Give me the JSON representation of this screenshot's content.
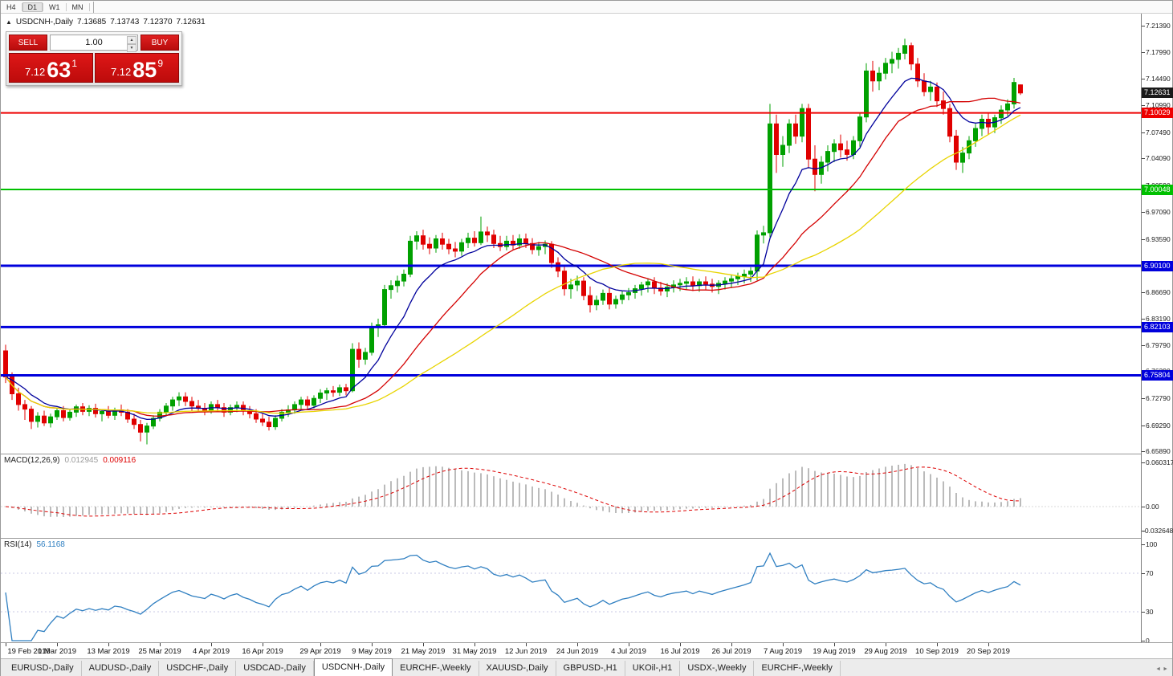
{
  "period_toolbar": {
    "buttons": [
      "H4",
      "D1",
      "W1",
      "MN"
    ],
    "active": "D1"
  },
  "chart_header": {
    "collapse_icon": "▲",
    "symbol": "USDCNH-,Daily",
    "open": "7.13685",
    "high": "7.13743",
    "low": "7.12370",
    "close": "7.12631"
  },
  "trade_panel": {
    "sell_label": "SELL",
    "buy_label": "BUY",
    "volume": "1.00",
    "sell_price": {
      "main": "7.12",
      "pips": "63",
      "sup": "1"
    },
    "buy_price": {
      "main": "7.12",
      "pips": "85",
      "sup": "9"
    }
  },
  "colors": {
    "candle_up": "#00a000",
    "candle_down": "#e00000",
    "macd_hist": "#aaaaaa",
    "macd_signal": "#dd0000",
    "rsi_line": "#2f7fc1"
  },
  "price_axis": {
    "ticks": [
      "7.21390",
      "7.17990",
      "7.14490",
      "7.10990",
      "7.07490",
      "7.04090",
      "7.00590",
      "6.97090",
      "6.93590",
      "6.90090",
      "6.86690",
      "6.83190",
      "6.79790",
      "6.76390",
      "6.72790",
      "6.69290",
      "6.65890"
    ],
    "level_labels": [
      {
        "text": "7.12631",
        "price": 7.12631,
        "color": "#1a1a1a"
      },
      {
        "text": "7.10029",
        "price": 7.10029,
        "color": "#ee0000"
      },
      {
        "text": "7.00048",
        "price": 7.00048,
        "color": "#00c000"
      },
      {
        "text": "6.90100",
        "price": 6.901,
        "color": "#0000dc"
      },
      {
        "text": "6.82103",
        "price": 6.82103,
        "color": "#0000dc"
      },
      {
        "text": "6.75804",
        "price": 6.75804,
        "color": "#0000dc"
      }
    ]
  },
  "macd_panel": {
    "label": "MACD(12,26,9)",
    "value": "0.012945",
    "signal_value": "0.009116",
    "axis": [
      {
        "text": "0.060317",
        "v": 0.060317
      },
      {
        "text": "0.00",
        "v": 0
      },
      {
        "text": "-0.032648",
        "v": -0.032648
      }
    ]
  },
  "rsi_panel": {
    "label": "RSI(14)",
    "value": "56.1168",
    "axis": [
      {
        "text": "100",
        "v": 100
      },
      {
        "text": "70",
        "v": 70
      },
      {
        "text": "30",
        "v": 30
      },
      {
        "text": "0",
        "v": 0
      }
    ]
  },
  "bottom_tabs": {
    "active_index": 4,
    "tabs": [
      "EURUSD-,Daily",
      "AUDUSD-,Daily",
      "USDCHF-,Daily",
      "USDCAD-,Daily",
      "USDCNH-,Daily",
      "EURCHF-,Weekly",
      "XAUUSD-,Daily",
      "GBPUSD-,H1",
      "UKOil-,H1",
      "USDX-,Weekly",
      "EURCHF-,Weekly"
    ],
    "scroll_left_icon": "◄",
    "scroll_right_icon": "►"
  },
  "chart_data": {
    "type": "candlestick",
    "symbol": "USDCNH",
    "timeframe": "Daily",
    "ylim": [
      6.656,
      7.2297
    ],
    "current_price": 7.12631,
    "h_lines": [
      {
        "price": 7.10029,
        "color": "#ee0000",
        "width": 2
      },
      {
        "price": 7.00048,
        "color": "#00c000",
        "width": 2
      },
      {
        "price": 6.901,
        "color": "#0000dc",
        "width": 3
      },
      {
        "price": 6.82103,
        "color": "#0000dc",
        "width": 3
      },
      {
        "price": 6.75804,
        "color": "#0000dc",
        "width": 3
      }
    ],
    "indicators": {
      "ma": [
        {
          "type": "ema",
          "period": 10,
          "color": "#00009c"
        },
        {
          "type": "sma",
          "period": 21,
          "color": "#d40000"
        },
        {
          "type": "sma",
          "period": 40,
          "color": "#e8d400"
        }
      ],
      "macd": {
        "fast": 12,
        "slow": 26,
        "signal": 9
      },
      "rsi": {
        "period": 14,
        "levels": [
          70,
          30
        ]
      }
    },
    "macd_ylim": [
      -0.032648,
      0.060317
    ],
    "rsi_ylim": [
      0,
      100
    ],
    "date_labels": [
      {
        "i": 0,
        "t": "19 Feb 2019"
      },
      {
        "i": 8,
        "t": "1 Mar 2019"
      },
      {
        "i": 16,
        "t": "13 Mar 2019"
      },
      {
        "i": 24,
        "t": "25 Mar 2019"
      },
      {
        "i": 32,
        "t": "4 Apr 2019"
      },
      {
        "i": 40,
        "t": "16 Apr 2019"
      },
      {
        "i": 49,
        "t": "29 Apr 2019"
      },
      {
        "i": 57,
        "t": "9 May 2019"
      },
      {
        "i": 65,
        "t": "21 May 2019"
      },
      {
        "i": 73,
        "t": "31 May 2019"
      },
      {
        "i": 81,
        "t": "12 Jun 2019"
      },
      {
        "i": 89,
        "t": "24 Jun 2019"
      },
      {
        "i": 97,
        "t": "4 Jul 2019"
      },
      {
        "i": 105,
        "t": "16 Jul 2019"
      },
      {
        "i": 113,
        "t": "26 Jul 2019"
      },
      {
        "i": 121,
        "t": "7 Aug 2019"
      },
      {
        "i": 129,
        "t": "19 Aug 2019"
      },
      {
        "i": 137,
        "t": "29 Aug 2019"
      },
      {
        "i": 145,
        "t": "10 Sep 2019"
      },
      {
        "i": 153,
        "t": "20 Sep 2019"
      }
    ],
    "candles": [
      [
        6.79,
        6.798,
        6.748,
        6.756
      ],
      [
        6.756,
        6.762,
        6.726,
        6.734
      ],
      [
        6.734,
        6.742,
        6.712,
        6.72
      ],
      [
        6.72,
        6.726,
        6.7,
        6.714
      ],
      [
        6.714,
        6.718,
        6.688,
        6.698
      ],
      [
        6.698,
        6.71,
        6.69,
        6.705
      ],
      [
        6.705,
        6.712,
        6.692,
        6.696
      ],
      [
        6.696,
        6.708,
        6.69,
        6.704
      ],
      [
        6.704,
        6.716,
        6.7,
        6.712
      ],
      [
        6.712,
        6.718,
        6.698,
        6.703
      ],
      [
        6.703,
        6.714,
        6.699,
        6.71
      ],
      [
        6.71,
        6.72,
        6.704,
        6.717
      ],
      [
        6.717,
        6.722,
        6.706,
        6.711
      ],
      [
        6.711,
        6.719,
        6.705,
        6.715
      ],
      [
        6.715,
        6.721,
        6.703,
        6.708
      ],
      [
        6.708,
        6.714,
        6.698,
        6.711
      ],
      [
        6.711,
        6.718,
        6.702,
        6.706
      ],
      [
        6.706,
        6.716,
        6.7,
        6.713
      ],
      [
        6.713,
        6.72,
        6.705,
        6.71
      ],
      [
        6.71,
        6.714,
        6.696,
        6.701
      ],
      [
        6.701,
        6.708,
        6.688,
        6.694
      ],
      [
        6.694,
        6.7,
        6.672,
        6.684
      ],
      [
        6.684,
        6.696,
        6.668,
        6.692
      ],
      [
        6.692,
        6.706,
        6.688,
        6.702
      ],
      [
        6.702,
        6.714,
        6.698,
        6.71
      ],
      [
        6.71,
        6.722,
        6.706,
        6.718
      ],
      [
        6.718,
        6.73,
        6.712,
        6.726
      ],
      [
        6.726,
        6.736,
        6.718,
        6.73
      ],
      [
        6.73,
        6.736,
        6.718,
        6.724
      ],
      [
        6.724,
        6.73,
        6.712,
        6.718
      ],
      [
        6.718,
        6.726,
        6.71,
        6.715
      ],
      [
        6.715,
        6.722,
        6.706,
        6.712
      ],
      [
        6.712,
        6.724,
        6.708,
        6.72
      ],
      [
        6.72,
        6.726,
        6.71,
        6.716
      ],
      [
        6.716,
        6.722,
        6.704,
        6.71
      ],
      [
        6.71,
        6.72,
        6.706,
        6.716
      ],
      [
        6.716,
        6.724,
        6.71,
        6.719
      ],
      [
        6.719,
        6.724,
        6.706,
        6.712
      ],
      [
        6.712,
        6.718,
        6.702,
        6.708
      ],
      [
        6.708,
        6.714,
        6.696,
        6.701
      ],
      [
        6.701,
        6.708,
        6.692,
        6.697
      ],
      [
        6.697,
        6.704,
        6.686,
        6.691
      ],
      [
        6.691,
        6.706,
        6.687,
        6.702
      ],
      [
        6.702,
        6.714,
        6.698,
        6.71
      ],
      [
        6.71,
        6.719,
        6.704,
        6.713
      ],
      [
        6.713,
        6.724,
        6.708,
        6.72
      ],
      [
        6.72,
        6.73,
        6.714,
        6.726
      ],
      [
        6.726,
        6.731,
        6.714,
        6.719
      ],
      [
        6.719,
        6.732,
        6.715,
        6.728
      ],
      [
        6.728,
        6.74,
        6.722,
        6.735
      ],
      [
        6.735,
        6.742,
        6.726,
        6.738
      ],
      [
        6.738,
        6.744,
        6.73,
        6.736
      ],
      [
        6.736,
        6.746,
        6.731,
        6.742
      ],
      [
        6.742,
        6.747,
        6.732,
        6.738
      ],
      [
        6.738,
        6.8,
        6.736,
        6.792
      ],
      [
        6.792,
        6.801,
        6.768,
        6.779
      ],
      [
        6.779,
        6.794,
        6.772,
        6.788
      ],
      [
        6.788,
        6.827,
        6.784,
        6.821
      ],
      [
        6.821,
        6.832,
        6.808,
        6.824
      ],
      [
        6.824,
        6.876,
        6.82,
        6.87
      ],
      [
        6.87,
        6.882,
        6.858,
        6.875
      ],
      [
        6.875,
        6.888,
        6.866,
        6.881
      ],
      [
        6.881,
        6.896,
        6.874,
        6.89
      ],
      [
        6.89,
        6.94,
        6.886,
        6.933
      ],
      [
        6.933,
        6.946,
        6.922,
        6.94
      ],
      [
        6.94,
        6.948,
        6.922,
        6.929
      ],
      [
        6.929,
        6.938,
        6.916,
        6.924
      ],
      [
        6.924,
        6.941,
        6.918,
        6.936
      ],
      [
        6.936,
        6.944,
        6.922,
        6.929
      ],
      [
        6.929,
        6.936,
        6.916,
        6.923
      ],
      [
        6.923,
        6.932,
        6.912,
        6.92
      ],
      [
        6.92,
        6.936,
        6.914,
        6.931
      ],
      [
        6.931,
        6.944,
        6.924,
        6.937
      ],
      [
        6.937,
        6.946,
        6.926,
        6.931
      ],
      [
        6.931,
        6.965,
        6.928,
        6.945
      ],
      [
        6.945,
        6.952,
        6.932,
        6.941
      ],
      [
        6.941,
        6.948,
        6.924,
        6.93
      ],
      [
        6.93,
        6.94,
        6.92,
        6.926
      ],
      [
        6.926,
        6.94,
        6.921,
        6.933
      ],
      [
        6.933,
        6.941,
        6.922,
        6.928
      ],
      [
        6.928,
        6.942,
        6.923,
        6.936
      ],
      [
        6.936,
        6.943,
        6.924,
        6.93
      ],
      [
        6.93,
        6.937,
        6.916,
        6.922
      ],
      [
        6.922,
        6.932,
        6.914,
        6.926
      ],
      [
        6.926,
        6.934,
        6.916,
        6.929
      ],
      [
        6.929,
        6.933,
        6.898,
        6.905
      ],
      [
        6.905,
        6.912,
        6.886,
        6.894
      ],
      [
        6.894,
        6.9,
        6.862,
        6.871
      ],
      [
        6.871,
        6.884,
        6.858,
        6.876
      ],
      [
        6.876,
        6.888,
        6.868,
        6.881
      ],
      [
        6.881,
        6.886,
        6.856,
        6.862
      ],
      [
        6.862,
        6.874,
        6.84,
        6.85
      ],
      [
        6.85,
        6.862,
        6.843,
        6.856
      ],
      [
        6.856,
        6.87,
        6.85,
        6.865
      ],
      [
        6.865,
        6.872,
        6.844,
        6.851
      ],
      [
        6.851,
        6.862,
        6.845,
        6.857
      ],
      [
        6.857,
        6.868,
        6.851,
        6.863
      ],
      [
        6.863,
        6.872,
        6.856,
        6.866
      ],
      [
        6.866,
        6.876,
        6.858,
        6.871
      ],
      [
        6.871,
        6.88,
        6.862,
        6.876
      ],
      [
        6.876,
        6.884,
        6.866,
        6.88
      ],
      [
        6.88,
        6.886,
        6.864,
        6.872
      ],
      [
        6.872,
        6.88,
        6.862,
        6.868
      ],
      [
        6.868,
        6.878,
        6.86,
        6.873
      ],
      [
        6.873,
        6.882,
        6.866,
        6.876
      ],
      [
        6.876,
        6.884,
        6.868,
        6.878
      ],
      [
        6.878,
        6.886,
        6.87,
        6.88
      ],
      [
        6.88,
        6.887,
        6.868,
        6.875
      ],
      [
        6.875,
        6.884,
        6.867,
        6.88
      ],
      [
        6.88,
        6.887,
        6.87,
        6.877
      ],
      [
        6.877,
        6.884,
        6.866,
        6.874
      ],
      [
        6.874,
        6.882,
        6.864,
        6.878
      ],
      [
        6.878,
        6.886,
        6.87,
        6.881
      ],
      [
        6.881,
        6.889,
        6.872,
        6.884
      ],
      [
        6.884,
        6.892,
        6.876,
        6.887
      ],
      [
        6.887,
        6.896,
        6.878,
        6.89
      ],
      [
        6.89,
        6.899,
        6.88,
        6.894
      ],
      [
        6.894,
        6.947,
        6.882,
        6.941
      ],
      [
        6.941,
        6.953,
        6.93,
        6.944
      ],
      [
        6.944,
        7.112,
        6.938,
        7.086
      ],
      [
        7.086,
        7.098,
        7.022,
        7.046
      ],
      [
        7.046,
        7.07,
        7.03,
        7.058
      ],
      [
        7.058,
        7.092,
        7.048,
        7.086
      ],
      [
        7.086,
        7.098,
        7.06,
        7.07
      ],
      [
        7.07,
        7.112,
        7.062,
        7.106
      ],
      [
        7.106,
        7.112,
        7.028,
        7.04
      ],
      [
        7.04,
        7.058,
        6.998,
        7.02
      ],
      [
        7.02,
        7.044,
        7.008,
        7.036
      ],
      [
        7.036,
        7.058,
        7.024,
        7.05
      ],
      [
        7.05,
        7.066,
        7.036,
        7.06
      ],
      [
        7.06,
        7.072,
        7.042,
        7.052
      ],
      [
        7.052,
        7.064,
        7.038,
        7.046
      ],
      [
        7.046,
        7.07,
        7.04,
        7.064
      ],
      [
        7.064,
        7.1,
        7.056,
        7.095
      ],
      [
        7.095,
        7.165,
        7.088,
        7.155
      ],
      [
        7.155,
        7.168,
        7.128,
        7.142
      ],
      [
        7.142,
        7.16,
        7.13,
        7.152
      ],
      [
        7.152,
        7.172,
        7.144,
        7.165
      ],
      [
        7.165,
        7.18,
        7.152,
        7.17
      ],
      [
        7.17,
        7.185,
        7.158,
        7.178
      ],
      [
        7.178,
        7.197,
        7.17,
        7.188
      ],
      [
        7.188,
        7.192,
        7.156,
        7.164
      ],
      [
        7.164,
        7.172,
        7.134,
        7.142
      ],
      [
        7.142,
        7.152,
        7.122,
        7.128
      ],
      [
        7.128,
        7.142,
        7.116,
        7.134
      ],
      [
        7.134,
        7.14,
        7.108,
        7.116
      ],
      [
        7.116,
        7.128,
        7.098,
        7.106
      ],
      [
        7.106,
        7.112,
        7.062,
        7.07
      ],
      [
        7.07,
        7.078,
        7.026,
        7.036
      ],
      [
        7.036,
        7.056,
        7.022,
        7.048
      ],
      [
        7.048,
        7.07,
        7.04,
        7.064
      ],
      [
        7.064,
        7.086,
        7.056,
        7.08
      ],
      [
        7.08,
        7.098,
        7.07,
        7.092
      ],
      [
        7.092,
        7.1,
        7.072,
        7.082
      ],
      [
        7.082,
        7.098,
        7.074,
        7.094
      ],
      [
        7.094,
        7.11,
        7.086,
        7.104
      ],
      [
        7.104,
        7.118,
        7.096,
        7.112
      ],
      [
        7.112,
        7.146,
        7.106,
        7.14
      ],
      [
        7.13685,
        7.13743,
        7.1237,
        7.12631
      ]
    ]
  }
}
